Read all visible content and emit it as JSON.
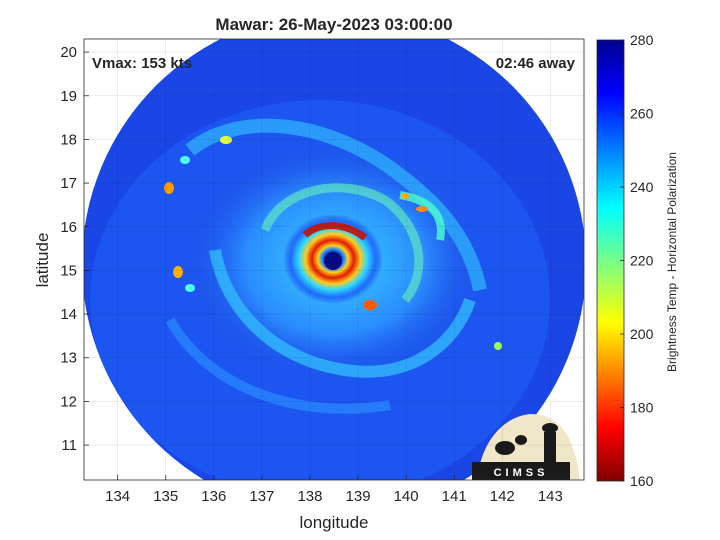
{
  "figure": {
    "title": "Mawar: 26-May-2023 03:00:00",
    "vmax_text": "Vmax: 153 kts",
    "time_text": "02:46 away",
    "xlabel": "longitude",
    "ylabel": "latitude",
    "colorbar_label": "Brightness Temp - Horizontal Polarization",
    "logo_text": "CIMSS"
  },
  "map": {
    "lon_range": [
      133.3,
      143.7
    ],
    "lat_range": [
      10.2,
      20.3
    ],
    "lon_ticks": [
      "134",
      "135",
      "136",
      "137",
      "138",
      "139",
      "140",
      "141",
      "142",
      "143"
    ],
    "lat_ticks": [
      "11",
      "12",
      "13",
      "14",
      "15",
      "16",
      "17",
      "18",
      "19",
      "20"
    ],
    "grid": true,
    "storm_center": {
      "lon": 138.5,
      "lat": 15.2
    },
    "colors": {
      "background_cold": "#1a3fd6",
      "eye": "#0a0a80",
      "eyewall": "#d61a00"
    }
  },
  "colorbar": {
    "min": 160,
    "max": 280,
    "ticks": [
      "280",
      "260",
      "240",
      "220",
      "200",
      "180",
      "160"
    ],
    "colormap": "jet"
  }
}
